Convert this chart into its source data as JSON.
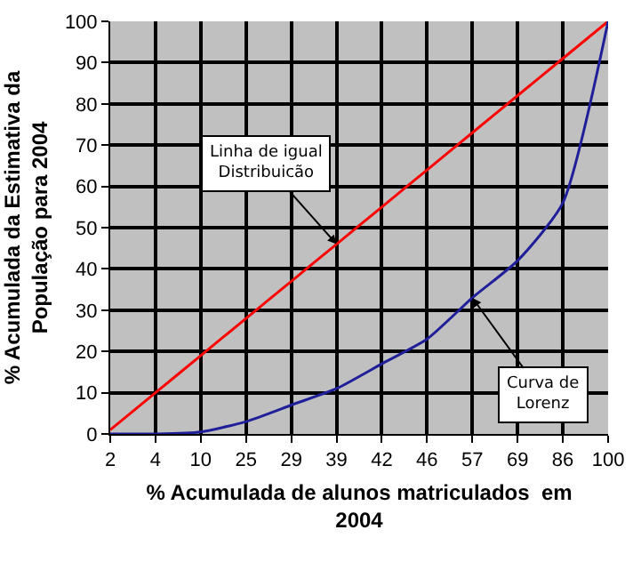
{
  "chart_data": {
    "type": "line",
    "xlabel": "% Acumulada de alunos matriculados  em\n2004",
    "ylabel": "% Acumulada da Estimativa da\nPopulação para 2004",
    "categories": [
      "2",
      "4",
      "10",
      "25",
      "29",
      "39",
      "42",
      "46",
      "57",
      "69",
      "86",
      "100"
    ],
    "series": [
      {
        "color": "#ff0000",
        "values": [
          1,
          10,
          19,
          28,
          37,
          46,
          55,
          64,
          73,
          82,
          91,
          100
        ]
      },
      {
        "color": "#1f1f9a",
        "values": [
          0,
          0,
          0.5,
          3,
          7,
          11,
          17,
          23,
          33,
          42,
          56,
          100
        ]
      }
    ],
    "annotations": [
      {
        "text": "Linha de igual\nDistribuicão",
        "x": "39",
        "y": 46
      },
      {
        "text": "Curva de\nLorenz",
        "x": "57",
        "y": 33
      }
    ],
    "ylim": [
      0,
      100
    ],
    "yticks": [
      0,
      10,
      20,
      30,
      40,
      50,
      60,
      70,
      80,
      90,
      100
    ],
    "grid": true,
    "marker": "none",
    "line_style": "solid"
  }
}
